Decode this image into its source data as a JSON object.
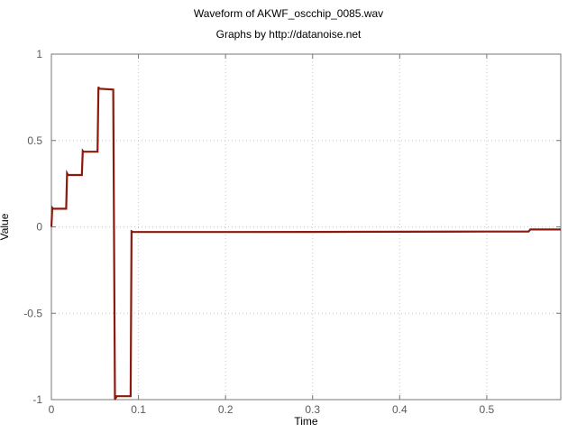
{
  "chart_data": {
    "type": "line",
    "title": "Waveform of AKWF_oscchip_0085.wav",
    "subtitle": "Graphs by http://datanoise.net",
    "xlabel": "Time",
    "ylabel": "Value",
    "xlim": [
      0,
      0.585
    ],
    "ylim": [
      -1,
      1
    ],
    "xticks": [
      0,
      0.1,
      0.2,
      0.3,
      0.4,
      0.5
    ],
    "xtick_labels": [
      "0",
      "0.1",
      "0.2",
      "0.3",
      "0.4",
      "0.5"
    ],
    "yticks": [
      1,
      0.5,
      0,
      -0.5,
      -1
    ],
    "ytick_labels": [
      "1",
      "0.5",
      "0",
      "-0.5",
      "-1"
    ],
    "grid": true,
    "line_color": "#8b1a0e",
    "series": [
      {
        "x": [
          0,
          0.001,
          0.002,
          0.017,
          0.018,
          0.019,
          0.035,
          0.036,
          0.037,
          0.053,
          0.054,
          0.055,
          0.071,
          0.073,
          0.075,
          0.091,
          0.092,
          0.094,
          0.2,
          0.3,
          0.4,
          0.5,
          0.548,
          0.55,
          0.585
        ],
        "y": [
          0.0,
          0.11,
          0.105,
          0.105,
          0.31,
          0.3,
          0.3,
          0.44,
          0.435,
          0.435,
          0.81,
          0.8,
          0.795,
          -1.0,
          -0.98,
          -0.98,
          -0.025,
          -0.03,
          -0.03,
          -0.029,
          -0.028,
          -0.027,
          -0.027,
          -0.015,
          -0.015
        ]
      }
    ]
  }
}
